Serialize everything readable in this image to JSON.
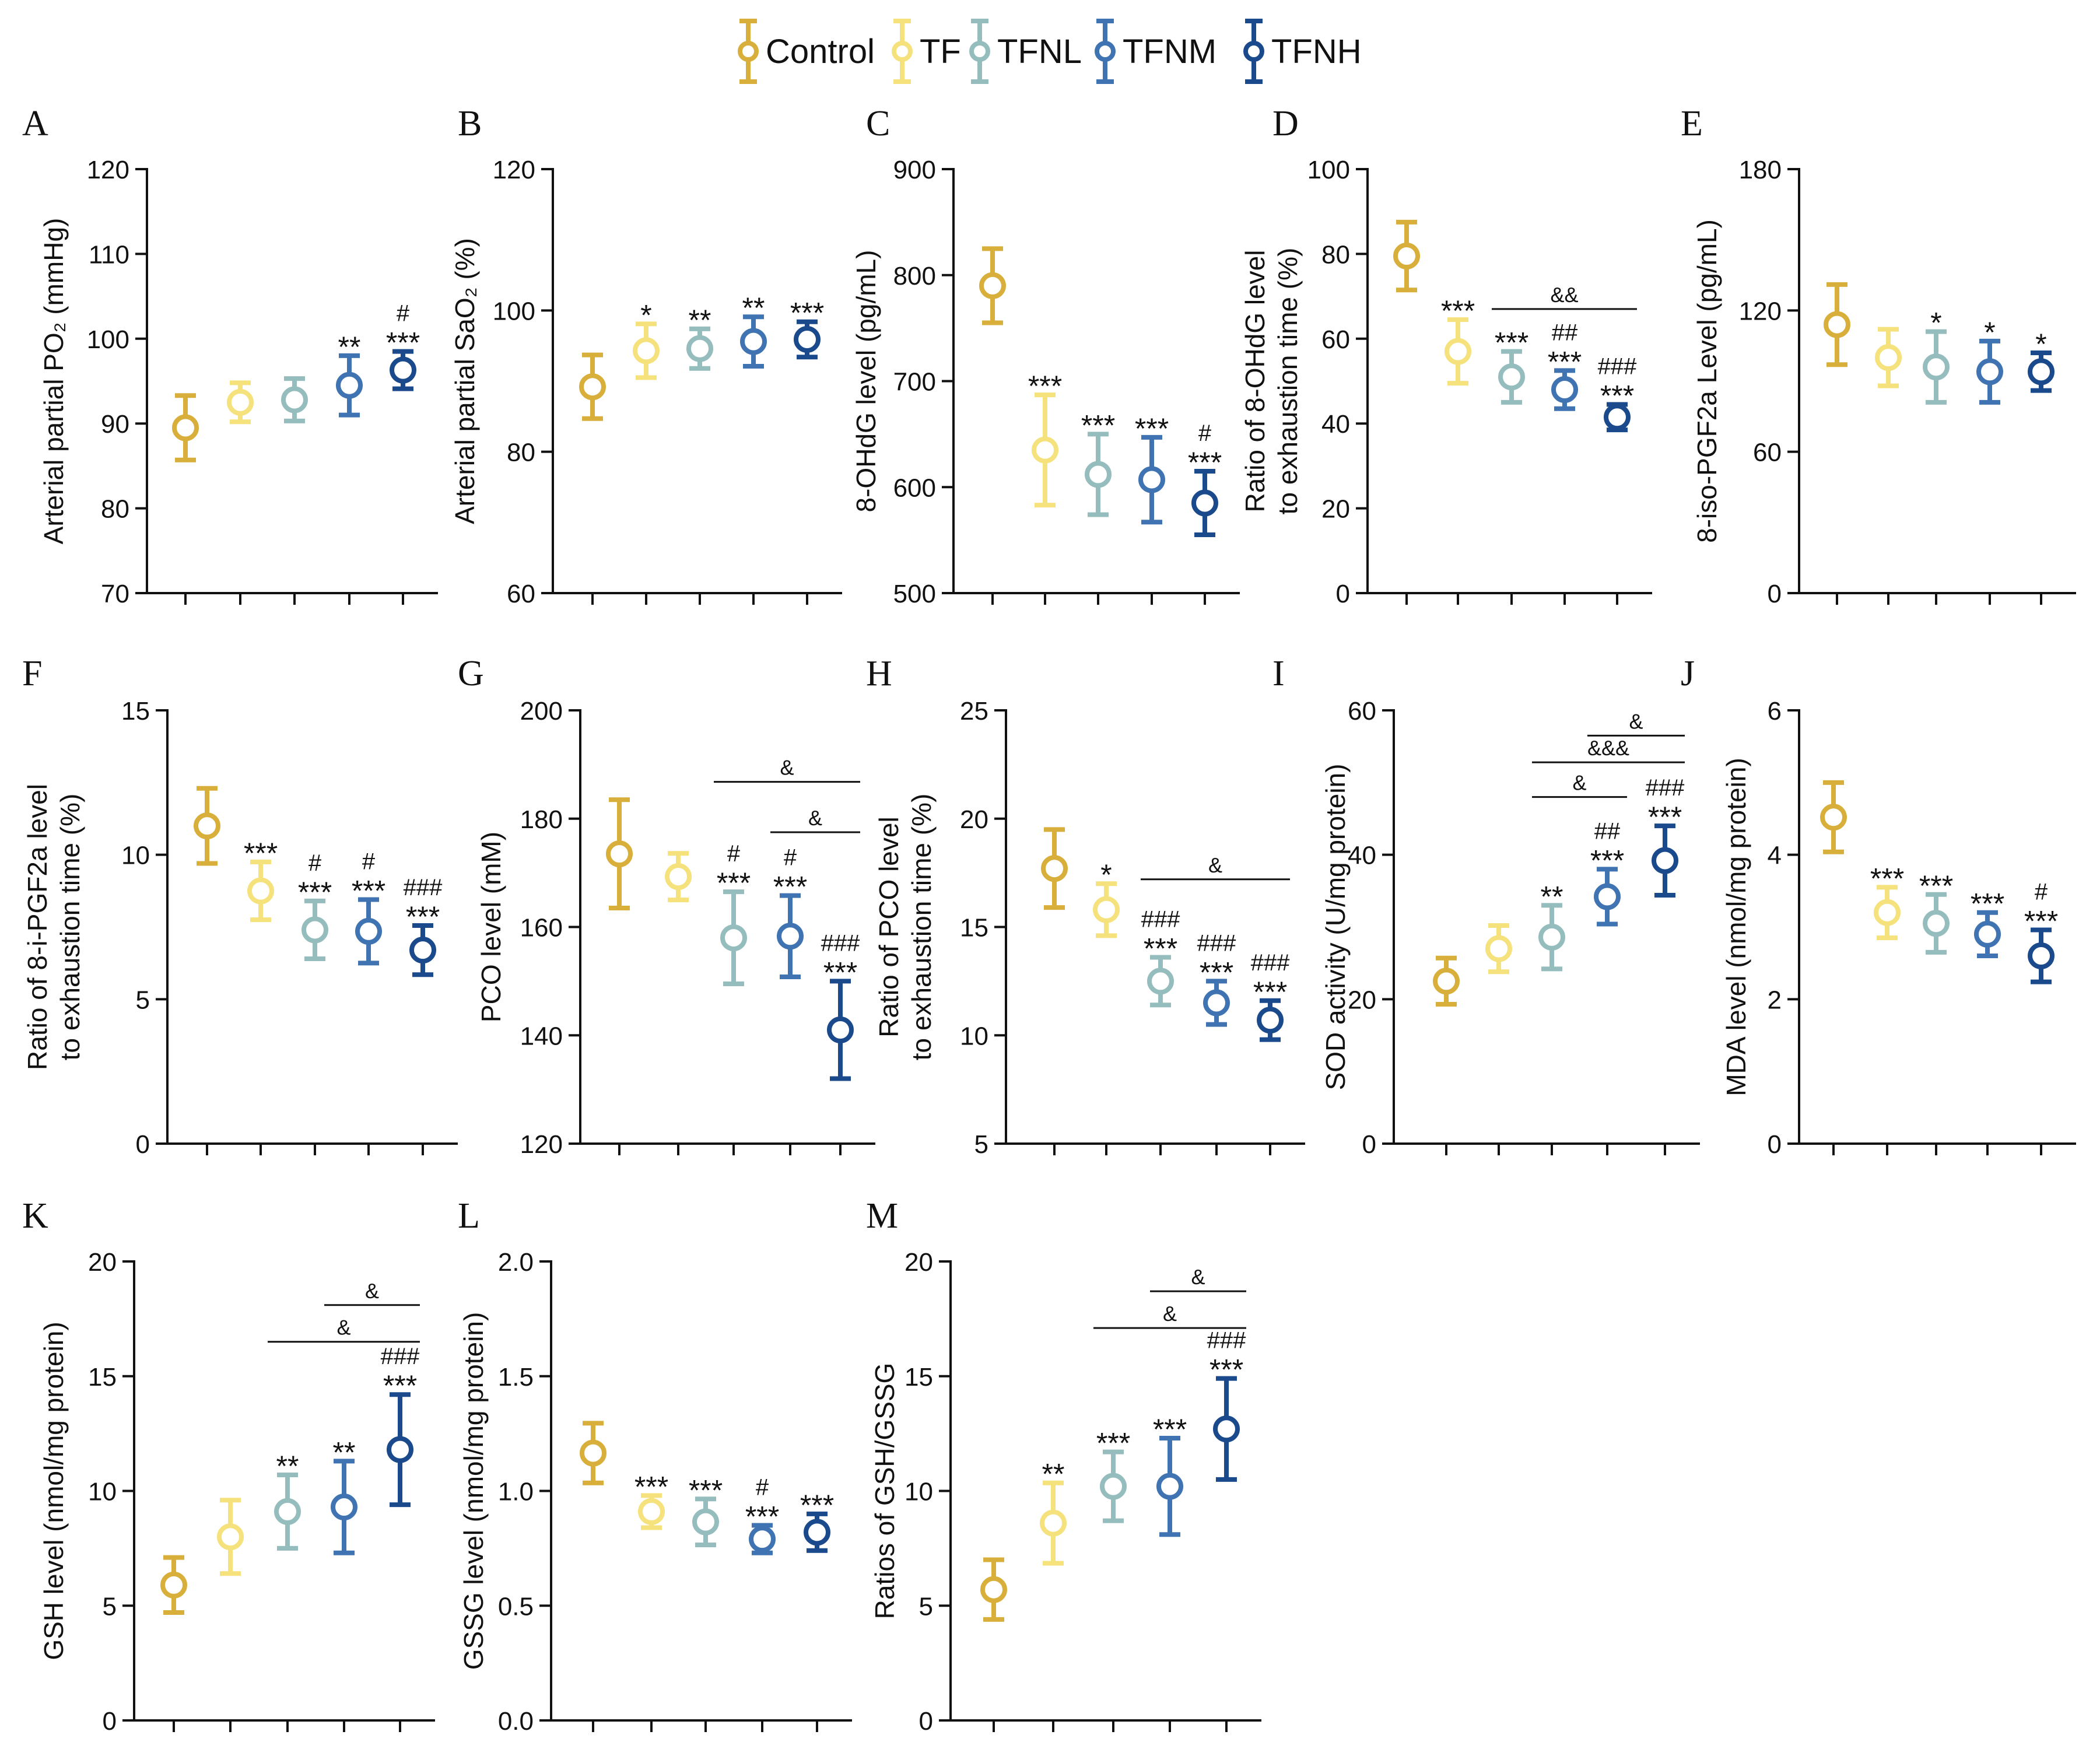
{
  "colors": {
    "Control": "#D9AF3B",
    "TF": "#F6E27C",
    "TFNL": "#96BDBE",
    "TFNM": "#3F73B1",
    "TFNH": "#1A4A8C",
    "axis": "#111111"
  },
  "chart_data": {
    "legend": [
      "Control",
      "TF",
      "TFNL",
      "TFNM",
      "TFNH"
    ],
    "panels": [
      {
        "letter": "A",
        "type": "scatter",
        "ylabel_lines": [
          "Arterial partial PO₂ (mmHg)"
        ],
        "ylim": [
          70,
          120
        ],
        "yticks": [
          70,
          80,
          90,
          100,
          110,
          120
        ],
        "means": [
          89.5,
          92.5,
          92.8,
          94.5,
          96.3
        ],
        "errors": [
          3.8,
          2.3,
          2.5,
          3.5,
          2.2
        ],
        "sig": [
          [],
          [],
          [],
          [
            "**"
          ],
          [
            "#",
            "***"
          ]
        ],
        "brackets": []
      },
      {
        "letter": "B",
        "type": "scatter",
        "ylabel_lines": [
          "Arterial partial SaO₂ (%)"
        ],
        "ylim": [
          60,
          120
        ],
        "yticks": [
          60,
          80,
          100,
          120
        ],
        "means": [
          89.2,
          94.3,
          94.6,
          95.6,
          95.9
        ],
        "errors": [
          4.5,
          3.8,
          2.8,
          3.5,
          2.5
        ],
        "sig": [
          [],
          [
            "*"
          ],
          [
            "**"
          ],
          [
            "**"
          ],
          [
            "***"
          ]
        ],
        "brackets": []
      },
      {
        "letter": "C",
        "type": "scatter",
        "ylabel_lines": [
          "8-OHdG level (pg/mL)"
        ],
        "ylim": [
          500,
          900
        ],
        "yticks": [
          500,
          600,
          700,
          800,
          900
        ],
        "means": [
          790,
          635,
          612,
          607,
          585
        ],
        "errors": [
          35,
          52,
          38,
          40,
          30
        ],
        "sig": [
          [],
          [
            "***"
          ],
          [
            "***"
          ],
          [
            "***"
          ],
          [
            "#",
            "***"
          ]
        ],
        "brackets": []
      },
      {
        "letter": "D",
        "type": "scatter",
        "ylabel_lines": [
          "Ratio of 8-OHdG level",
          "to exhaustion time (%)"
        ],
        "ylim": [
          0,
          100
        ],
        "yticks": [
          0,
          20,
          40,
          60,
          80,
          100
        ],
        "means": [
          79.5,
          57.0,
          51.0,
          48.0,
          41.5
        ],
        "errors": [
          8,
          7.5,
          6,
          4.5,
          3
        ],
        "sig": [
          [],
          [
            "***"
          ],
          [
            "***"
          ],
          [
            "##",
            "***"
          ],
          [
            "###",
            "***"
          ]
        ],
        "brackets": [
          {
            "from": 2,
            "to": 4,
            "y": 67,
            "label": "&&"
          }
        ]
      },
      {
        "letter": "E",
        "type": "scatter",
        "ylabel_lines": [
          "8-iso-PGF2a Level (pg/mL)"
        ],
        "ylim": [
          0,
          180
        ],
        "yticks": [
          0,
          60,
          120,
          180
        ],
        "means": [
          114,
          100,
          96,
          94,
          94
        ],
        "errors": [
          17,
          12,
          15,
          13,
          8
        ],
        "sig": [
          [],
          [],
          [
            "*"
          ],
          [
            "*"
          ],
          [
            "*"
          ]
        ],
        "brackets": []
      },
      {
        "letter": "F",
        "type": "scatter",
        "ylabel_lines": [
          "Ratio of 8-i-PGF2a level",
          "to exhaustion time (%)"
        ],
        "ylim": [
          0,
          15
        ],
        "yticks": [
          0,
          5,
          10,
          15
        ],
        "means": [
          11.0,
          8.75,
          7.4,
          7.35,
          6.7
        ],
        "errors": [
          1.3,
          1.0,
          1.0,
          1.1,
          0.85
        ],
        "sig": [
          [],
          [
            "***"
          ],
          [
            "#",
            "***"
          ],
          [
            "#",
            "***"
          ],
          [
            "###",
            "***"
          ]
        ],
        "brackets": []
      },
      {
        "letter": "G",
        "type": "scatter",
        "ylabel_lines": [
          "PCO level (mM)"
        ],
        "ylim": [
          120,
          200
        ],
        "yticks": [
          120,
          140,
          160,
          180,
          200
        ],
        "means": [
          173.5,
          169.3,
          158,
          158.3,
          141
        ],
        "errors": [
          10,
          4.3,
          8.5,
          7.5,
          9
        ],
        "sig": [
          [],
          [],
          [
            "#",
            "***"
          ],
          [
            "#",
            "***"
          ],
          [
            "###",
            "***"
          ]
        ],
        "brackets": [
          {
            "from": 2,
            "to": 4,
            "y": 186.8,
            "label": "&"
          },
          {
            "from": 3,
            "to": 4,
            "y": 177.5,
            "label": "&"
          }
        ]
      },
      {
        "letter": "H",
        "type": "scatter",
        "ylabel_lines": [
          "Ratio of PCO level",
          "to exhaustion time (%)"
        ],
        "ylim": [
          5,
          25
        ],
        "yticks": [
          5,
          10,
          15,
          20,
          25
        ],
        "means": [
          17.7,
          15.8,
          12.5,
          11.5,
          10.7
        ],
        "errors": [
          1.8,
          1.2,
          1.1,
          1.0,
          0.9
        ],
        "sig": [
          [],
          [
            "*"
          ],
          [
            "###",
            "***"
          ],
          [
            "###",
            "***"
          ],
          [
            "###",
            "***"
          ]
        ],
        "brackets": [
          {
            "from": 2,
            "to": 4,
            "y": 17.2,
            "label": "&"
          }
        ]
      },
      {
        "letter": "I",
        "type": "scatter",
        "ylabel_lines": [
          "SOD activity (U/mg protein)"
        ],
        "ylim": [
          0,
          60
        ],
        "yticks": [
          0,
          20,
          40,
          60
        ],
        "means": [
          22.5,
          27,
          28.6,
          34.2,
          39.2
        ],
        "errors": [
          3.2,
          3.2,
          4.4,
          3.8,
          4.8
        ],
        "sig": [
          [],
          [],
          [
            "**"
          ],
          [
            "##",
            "***"
          ],
          [
            "###",
            "***"
          ]
        ],
        "brackets": [
          {
            "from": 2,
            "to": 3,
            "y": 48.0,
            "label": "&"
          },
          {
            "from": 2,
            "to": 4,
            "y": 52.8,
            "label": "&&&"
          },
          {
            "from": 3,
            "to": 4,
            "y": 56.5,
            "label": "&"
          }
        ]
      },
      {
        "letter": "J",
        "type": "scatter",
        "ylabel_lines": [
          "MDA level (nmol/mg protein)"
        ],
        "ylim": [
          0,
          6
        ],
        "yticks": [
          0,
          2,
          4,
          6
        ],
        "means": [
          4.52,
          3.2,
          3.05,
          2.9,
          2.6
        ],
        "errors": [
          0.48,
          0.35,
          0.4,
          0.3,
          0.36
        ],
        "sig": [
          [],
          [
            "***"
          ],
          [
            "***"
          ],
          [
            "***"
          ],
          [
            "#",
            "***"
          ]
        ],
        "brackets": []
      },
      {
        "letter": "K",
        "type": "scatter",
        "ylabel_lines": [
          "GSH level (nmol/mg protein)"
        ],
        "ylim": [
          0,
          20
        ],
        "yticks": [
          0,
          5,
          10,
          15,
          20
        ],
        "means": [
          5.9,
          8.0,
          9.1,
          9.3,
          11.8
        ],
        "errors": [
          1.2,
          1.6,
          1.6,
          2.0,
          2.4
        ],
        "sig": [
          [],
          [],
          [
            "**"
          ],
          [
            "**"
          ],
          [
            "###",
            "***"
          ]
        ],
        "brackets": [
          {
            "from": 2,
            "to": 4,
            "y": 16.5,
            "label": "&"
          },
          {
            "from": 3,
            "to": 4,
            "y": 18.1,
            "label": "&"
          }
        ]
      },
      {
        "letter": "L",
        "type": "scatter",
        "ylabel_lines": [
          "GSSG level (nmol/mg protein)"
        ],
        "ylim": [
          0,
          2
        ],
        "yticks": [
          "0.0",
          "0.5",
          "1.0",
          "1.5",
          "2.0"
        ],
        "means": [
          1.165,
          0.91,
          0.865,
          0.79,
          0.82
        ],
        "errors": [
          0.13,
          0.07,
          0.1,
          0.06,
          0.08
        ],
        "sig": [
          [],
          [
            "***"
          ],
          [
            "***"
          ],
          [
            "#",
            "***"
          ],
          [
            "***"
          ]
        ],
        "brackets": []
      },
      {
        "letter": "M",
        "type": "scatter",
        "ylabel_lines": [
          "Ratios of GSH/GSSG"
        ],
        "ylim": [
          0,
          20
        ],
        "yticks": [
          0,
          5,
          10,
          15,
          20
        ],
        "means": [
          5.7,
          8.6,
          10.2,
          10.2,
          12.7
        ],
        "errors": [
          1.3,
          1.75,
          1.5,
          2.1,
          2.2
        ],
        "sig": [
          [],
          [
            "**"
          ],
          [
            "***"
          ],
          [
            "***"
          ],
          [
            "###",
            "***"
          ]
        ],
        "brackets": [
          {
            "from": 2,
            "to": 4,
            "y": 17.1,
            "label": "&"
          },
          {
            "from": 3,
            "to": 4,
            "y": 18.7,
            "label": "&"
          }
        ]
      }
    ]
  }
}
